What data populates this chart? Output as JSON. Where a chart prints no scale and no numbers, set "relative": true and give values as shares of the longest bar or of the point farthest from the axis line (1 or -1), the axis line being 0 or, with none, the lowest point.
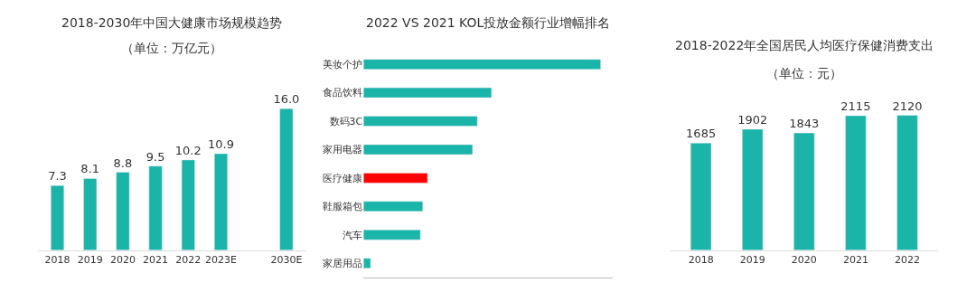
{
  "chart_data": [
    {
      "type": "bar",
      "title": "2018-2030年中国大健康市场规模趋势",
      "subtitle": "（单位：万亿元）",
      "categories": [
        "2018",
        "2019",
        "2020",
        "2021",
        "2022",
        "2023E",
        null,
        "2030E"
      ],
      "values": [
        7.3,
        8.1,
        8.8,
        9.5,
        10.2,
        10.9,
        null,
        16.0
      ],
      "value_labels": [
        "7.3",
        "8.1",
        "8.8",
        "9.5",
        "10.2",
        "10.9",
        null,
        "16.0"
      ],
      "color": "#1ab4a8",
      "tick_labels": "x"
    },
    {
      "type": "bar",
      "orientation": "horizontal",
      "relative": true,
      "title": "2022 VS 2021 KOL投放金额行业增幅排名",
      "categories": [
        "美妆个护",
        "食品饮料",
        "数码3C",
        "家用电器",
        "医疗健康",
        "鞋服箱包",
        "汽车",
        "家居用品"
      ],
      "values": [
        1,
        0.54,
        0.48,
        0.46,
        0.27,
        0.25,
        0.24,
        0.03
      ],
      "colors": [
        "#1ab4a8",
        "#1ab4a8",
        "#1ab4a8",
        "#1ab4a8",
        "#ff0000",
        "#1ab4a8",
        "#1ab4a8",
        "#1ab4a8"
      ]
    },
    {
      "type": "bar",
      "title": "2018-2022年全国居民人均医疗保健消费支出",
      "subtitle": "（单位：元）",
      "categories": [
        "2018",
        "2019",
        "2020",
        "2021",
        "2022"
      ],
      "values": [
        1685,
        1902,
        1843,
        2115,
        2120
      ],
      "data_labels": true,
      "color": "#1ab4a8",
      "tick_labels": "x"
    }
  ]
}
